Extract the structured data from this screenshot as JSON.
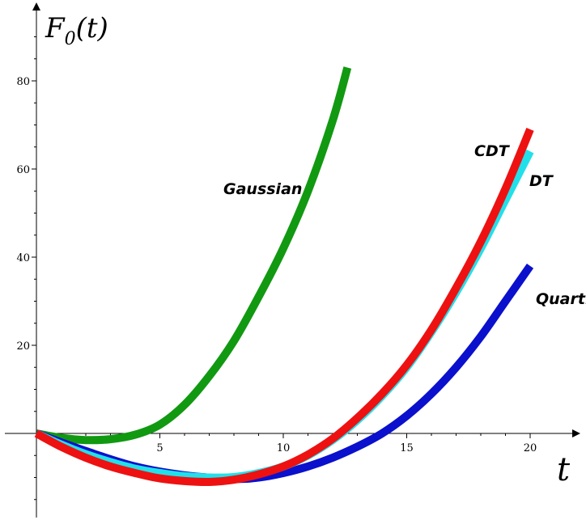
{
  "chart_data": {
    "type": "line",
    "xlabel": "t",
    "ylabel_main": "F",
    "ylabel_sub": "0",
    "ylabel_tail": "(t)",
    "x_ticks": [
      {
        "value": 5,
        "label": "5"
      },
      {
        "value": 10,
        "label": "10"
      },
      {
        "value": 15,
        "label": "15"
      },
      {
        "value": 20,
        "label": "20"
      }
    ],
    "y_ticks": [
      {
        "value": 20,
        "label": "20"
      },
      {
        "value": 40,
        "label": "40"
      },
      {
        "value": 60,
        "label": "60"
      },
      {
        "value": 80,
        "label": "80"
      }
    ],
    "xlim": [
      -0.5,
      21
    ],
    "ylim": [
      -20,
      96
    ],
    "grid": false,
    "series": [
      {
        "name": "Gaussian",
        "color": "#119911",
        "x": [
          0,
          1,
          2,
          3,
          4,
          5,
          6,
          7,
          8,
          9,
          10,
          11,
          12,
          12.6
        ],
        "y": [
          0,
          -1,
          -1.5,
          -1.3,
          -0.3,
          2,
          6.5,
          13,
          21,
          31,
          42,
          55,
          71,
          83
        ]
      },
      {
        "name": "Quartic",
        "color": "#0a10cc",
        "x": [
          0,
          2,
          4,
          6,
          8,
          9,
          10,
          11,
          12,
          13,
          14,
          15,
          16,
          17,
          18,
          19,
          20
        ],
        "y": [
          0,
          -4,
          -7.5,
          -9.5,
          -10.3,
          -10,
          -9,
          -7.5,
          -5.5,
          -3,
          0,
          4,
          9,
          15,
          22,
          30,
          38
        ]
      },
      {
        "name": "DT",
        "color": "#22e0ea",
        "x": [
          0,
          1,
          2,
          3,
          4,
          5,
          6,
          7,
          8,
          9,
          10,
          11,
          12,
          13,
          14,
          15,
          16,
          17,
          18,
          19,
          20
        ],
        "y": [
          0,
          -2.5,
          -4.7,
          -6.5,
          -8,
          -9,
          -9.7,
          -10,
          -9.9,
          -9,
          -7.5,
          -5,
          -1.5,
          3,
          8.5,
          15,
          23,
          32,
          42,
          53,
          64
        ]
      },
      {
        "name": "CDT",
        "color": "#ee1111",
        "x": [
          0,
          1,
          2,
          3,
          4,
          5,
          6,
          7,
          8,
          9,
          10,
          11,
          12,
          13,
          14,
          15,
          16,
          17,
          18,
          19,
          20
        ],
        "y": [
          0,
          -3,
          -5.5,
          -7.5,
          -9,
          -10.2,
          -10.8,
          -11,
          -10.5,
          -9.3,
          -7.5,
          -4.8,
          -1.2,
          3.5,
          9,
          15.5,
          23.5,
          33,
          43.5,
          55.5,
          69
        ]
      }
    ],
    "annotations": [
      {
        "text": "Gaussian",
        "series": "Gaussian"
      },
      {
        "text": "CDT",
        "series": "CDT"
      },
      {
        "text": "DT",
        "series": "DT"
      },
      {
        "text": "Quartic",
        "series": "Quartic"
      }
    ]
  }
}
